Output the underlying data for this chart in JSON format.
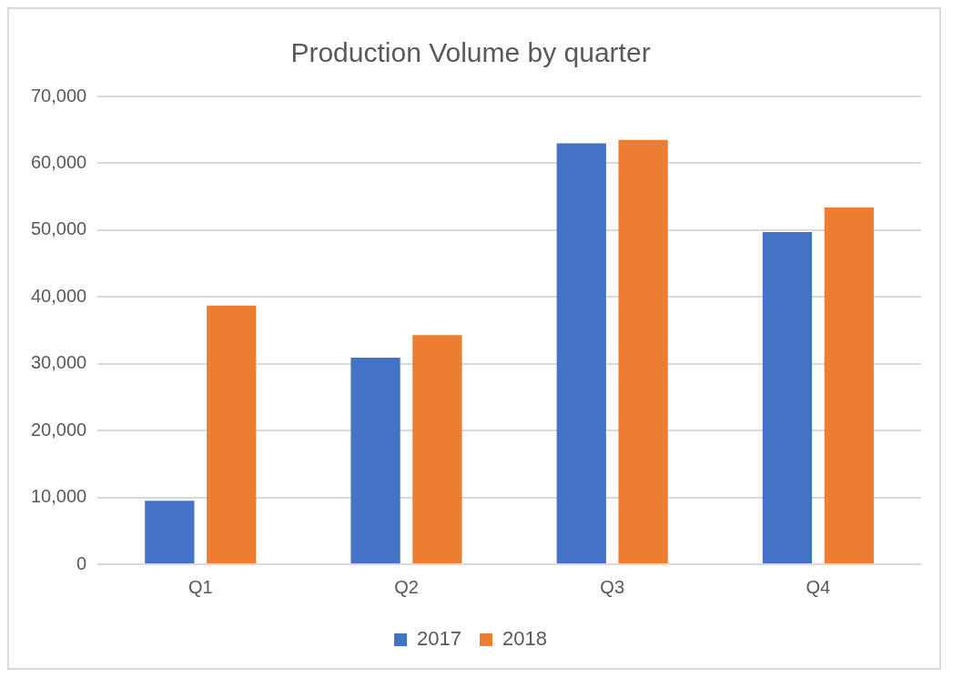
{
  "chart_data": {
    "type": "bar",
    "title": "Production Volume by quarter",
    "categories": [
      "Q1",
      "Q2",
      "Q3",
      "Q4"
    ],
    "series": [
      {
        "name": "2017",
        "color": "#4472c4",
        "values": [
          9500,
          30900,
          63000,
          49700
        ]
      },
      {
        "name": "2018",
        "color": "#ed7d31",
        "values": [
          38700,
          34300,
          63500,
          53400
        ]
      }
    ],
    "ylim": [
      0,
      70000
    ],
    "yticks": [
      {
        "value": 0,
        "label": "0"
      },
      {
        "value": 10000,
        "label": "10,000"
      },
      {
        "value": 20000,
        "label": "20,000"
      },
      {
        "value": 30000,
        "label": "30,000"
      },
      {
        "value": 40000,
        "label": "40,000"
      },
      {
        "value": 50000,
        "label": "50,000"
      },
      {
        "value": 60000,
        "label": "60,000"
      },
      {
        "value": 70000,
        "label": "70,000"
      }
    ],
    "grid": "y",
    "legend": "bottom"
  }
}
